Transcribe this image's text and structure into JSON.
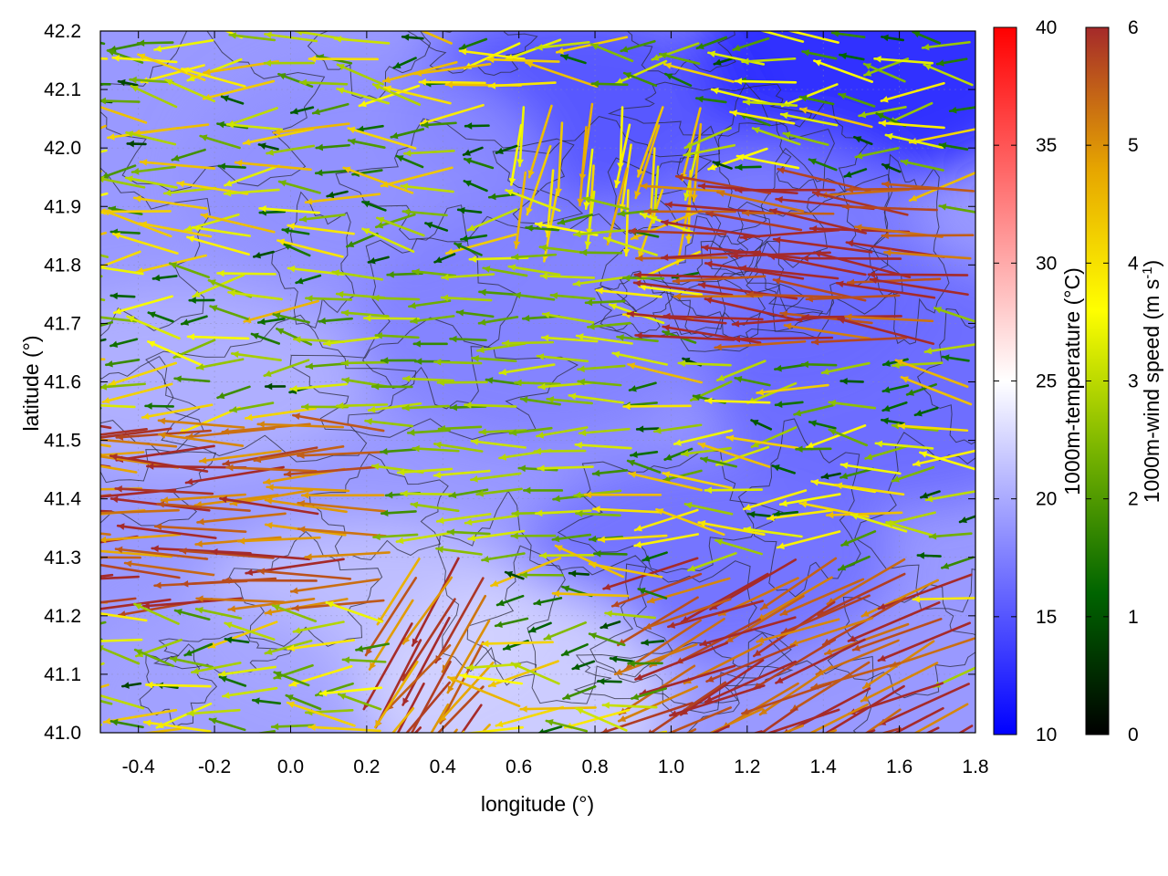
{
  "chart_data": {
    "type": "heatmap",
    "subtype": "temperature field with wind vectors and terrain contours",
    "xlabel": "longitude (°)",
    "ylabel": "latitude (°)",
    "xlim": [
      -0.5,
      1.8
    ],
    "ylim": [
      41.0,
      42.2
    ],
    "xticks": [
      "-0.4",
      "-0.2",
      "0.0",
      "0.2",
      "0.4",
      "0.6",
      "0.8",
      "1.0",
      "1.2",
      "1.4",
      "1.6",
      "1.8"
    ],
    "xtick_values": [
      -0.4,
      -0.2,
      0.0,
      0.2,
      0.4,
      0.6,
      0.8,
      1.0,
      1.2,
      1.4,
      1.6,
      1.8
    ],
    "yticks": [
      "41.0",
      "41.1",
      "41.2",
      "41.3",
      "41.4",
      "41.5",
      "41.6",
      "41.7",
      "41.8",
      "41.9",
      "42.0",
      "42.1",
      "42.2"
    ],
    "ytick_values": [
      41.0,
      41.1,
      41.2,
      41.3,
      41.4,
      41.5,
      41.6,
      41.7,
      41.8,
      41.9,
      42.0,
      42.1,
      42.2
    ],
    "grid": true,
    "temperature_colorbar": {
      "label": "1000m-temperature (°C)",
      "range": [
        10,
        40
      ],
      "ticks": [
        "10",
        "15",
        "20",
        "25",
        "30",
        "35",
        "40"
      ],
      "tick_values": [
        10,
        15,
        20,
        25,
        30,
        35,
        40
      ],
      "colors": [
        "#0000ff",
        "#ffffff",
        "#ff0000"
      ]
    },
    "wind_colorbar": {
      "label_main": "1000m-wind speed (m s",
      "label_sup": "-1",
      "label_end": ")",
      "range": [
        0,
        6
      ],
      "ticks": [
        "0",
        "1",
        "2",
        "3",
        "4",
        "5",
        "6"
      ],
      "tick_values": [
        0,
        1,
        2,
        3,
        4,
        5,
        6
      ],
      "colors": [
        "#000000",
        "#006400",
        "#78b400",
        "#ffff00",
        "#e6a500",
        "#a52a2a"
      ]
    },
    "temperature_regions": [
      {
        "lon": 0.75,
        "lat": 42.07,
        "temp": 14.5
      },
      {
        "lon": 1.55,
        "lat": 42.17,
        "temp": 12.0
      },
      {
        "lon": 0.2,
        "lat": 41.95,
        "temp": 18.5
      },
      {
        "lon": 1.3,
        "lat": 41.8,
        "temp": 17.0
      },
      {
        "lon": 0.65,
        "lat": 41.7,
        "temp": 17.5
      },
      {
        "lon": 1.1,
        "lat": 41.3,
        "temp": 16.5
      },
      {
        "lon": -0.3,
        "lat": 41.6,
        "temp": 20.5
      },
      {
        "lon": 0.2,
        "lat": 41.2,
        "temp": 21.5
      },
      {
        "lon": 0.6,
        "lat": 41.05,
        "temp": 22.5
      },
      {
        "lon": 1.6,
        "lat": 41.6,
        "temp": 16.0
      },
      {
        "lon": -0.2,
        "lat": 41.05,
        "temp": 19.5
      }
    ],
    "wind_regions": [
      {
        "lon_range": [
          1.1,
          1.8
        ],
        "lat_range": [
          41.65,
          41.95
        ],
        "direction_deg": 175,
        "speed": 5.8
      },
      {
        "lon_range": [
          -0.5,
          0.3
        ],
        "lat_range": [
          41.2,
          41.55
        ],
        "direction_deg": 180,
        "speed": 5.5
      },
      {
        "lon_range": [
          1.0,
          1.8
        ],
        "lat_range": [
          41.0,
          41.3
        ],
        "direction_deg": 205,
        "speed": 5.8
      },
      {
        "lon_range": [
          0.3,
          0.6
        ],
        "lat_range": [
          41.0,
          41.3
        ],
        "direction_deg": 235,
        "speed": 5.4
      },
      {
        "lon_range": [
          0.1,
          0.9
        ],
        "lat_range": [
          41.3,
          41.8
        ],
        "direction_deg": 180,
        "speed": 2.5
      },
      {
        "lon_range": [
          0.6,
          1.1
        ],
        "lat_range": [
          41.9,
          42.1
        ],
        "direction_deg": 260,
        "speed": 4.0
      }
    ]
  }
}
